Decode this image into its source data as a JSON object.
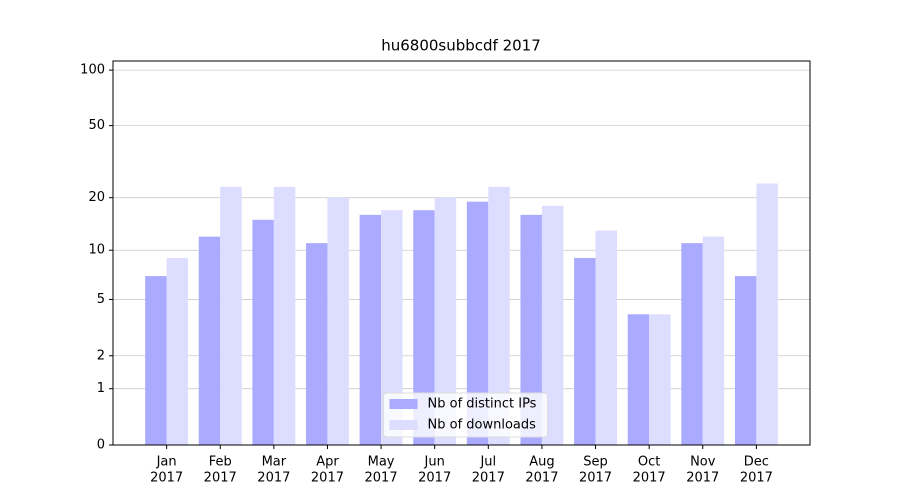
{
  "chart_data": {
    "type": "bar",
    "title": "hu6800subbcdf 2017",
    "scale": "log1p",
    "categories": [
      [
        "Jan",
        "2017"
      ],
      [
        "Feb",
        "2017"
      ],
      [
        "Mar",
        "2017"
      ],
      [
        "Apr",
        "2017"
      ],
      [
        "May",
        "2017"
      ],
      [
        "Jun",
        "2017"
      ],
      [
        "Jul",
        "2017"
      ],
      [
        "Aug",
        "2017"
      ],
      [
        "Sep",
        "2017"
      ],
      [
        "Oct",
        "2017"
      ],
      [
        "Nov",
        "2017"
      ],
      [
        "Dec",
        "2017"
      ]
    ],
    "series": [
      {
        "name": "Nb of distinct IPs",
        "color": "#aaaaff",
        "values": [
          7,
          12,
          15,
          11,
          16,
          17,
          19,
          16,
          9,
          4,
          11,
          7
        ]
      },
      {
        "name": "Nb of downloads",
        "color": "#ddddff",
        "values": [
          9,
          23,
          23,
          20,
          17,
          20,
          23,
          18,
          13,
          4,
          12,
          24
        ]
      }
    ],
    "ylim": [
      0,
      112
    ],
    "yticks": [
      0,
      1,
      2,
      5,
      10,
      20,
      50,
      100
    ],
    "grid": true,
    "legend": "lower center"
  }
}
